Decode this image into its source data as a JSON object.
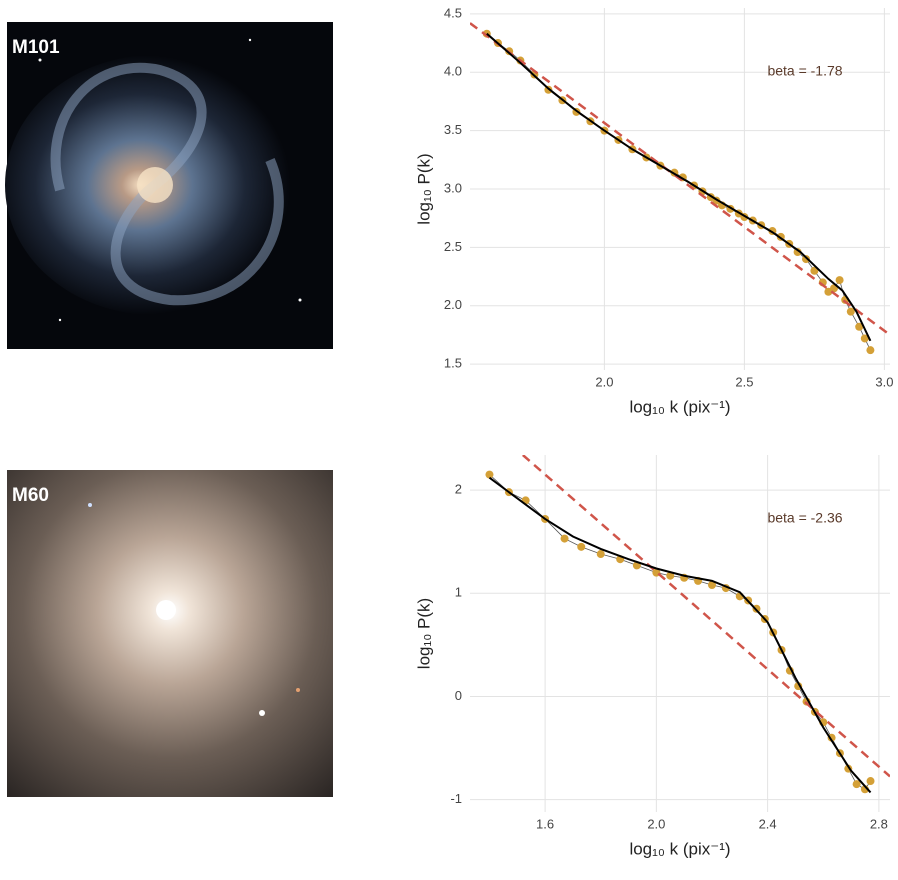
{
  "chart_data": [
    {
      "type": "scatter",
      "image_label": "M101",
      "annotation": "beta = -1.78",
      "xlabel": "log₁₀ k (pix⁻¹)",
      "ylabel": "log₁₀ P(k)",
      "xlim": [
        1.52,
        3.02
      ],
      "ylim": [
        1.45,
        4.55
      ],
      "xticks": [
        {
          "value": 2,
          "label": "2.0"
        },
        2.5,
        {
          "value": 3,
          "label": "3.0"
        }
      ],
      "yticks": [
        1.5,
        {
          "value": 2,
          "label": "2.0"
        },
        2.5,
        {
          "value": 3,
          "label": "3.0"
        },
        3.5,
        {
          "value": 4,
          "label": "4.0"
        },
        4.5
      ],
      "grid": true,
      "points": {
        "color": "#d4a037",
        "x": [
          1.58,
          1.62,
          1.66,
          1.7,
          1.75,
          1.8,
          1.85,
          1.9,
          1.95,
          2.0,
          2.05,
          2.1,
          2.15,
          2.2,
          2.25,
          2.28,
          2.32,
          2.35,
          2.38,
          2.4,
          2.42,
          2.45,
          2.48,
          2.5,
          2.53,
          2.56,
          2.6,
          2.63,
          2.66,
          2.69,
          2.72,
          2.75,
          2.78,
          2.8,
          2.82,
          2.84,
          2.86,
          2.88,
          2.91,
          2.93,
          2.95
        ],
        "values": [
          4.33,
          4.25,
          4.18,
          4.1,
          3.98,
          3.85,
          3.76,
          3.66,
          3.58,
          3.5,
          3.42,
          3.34,
          3.27,
          3.2,
          3.14,
          3.1,
          3.03,
          2.98,
          2.93,
          2.9,
          2.86,
          2.83,
          2.79,
          2.76,
          2.73,
          2.69,
          2.64,
          2.59,
          2.53,
          2.46,
          2.4,
          2.3,
          2.2,
          2.12,
          2.15,
          2.22,
          2.05,
          1.95,
          1.82,
          1.72,
          1.62
        ]
      },
      "smooth": {
        "color": "#000000",
        "x": [
          1.58,
          1.7,
          1.8,
          1.9,
          2.0,
          2.1,
          2.2,
          2.3,
          2.4,
          2.5,
          2.6,
          2.7,
          2.8,
          2.85,
          2.9,
          2.95
        ],
        "values": [
          4.33,
          4.08,
          3.86,
          3.67,
          3.5,
          3.34,
          3.2,
          3.06,
          2.91,
          2.77,
          2.63,
          2.46,
          2.23,
          2.13,
          1.95,
          1.7
        ]
      },
      "power_law": {
        "color": "#d0554a",
        "x": [
          1.52,
          3.02
        ],
        "values": [
          4.42,
          1.75
        ]
      }
    },
    {
      "type": "scatter",
      "image_label": "M60",
      "annotation": "beta = -2.36",
      "xlabel": "log₁₀ k (pix⁻¹)",
      "ylabel": "log₁₀ P(k)",
      "xlim": [
        1.33,
        2.84
      ],
      "ylim": [
        -1.12,
        2.34
      ],
      "xticks": [
        1.6,
        {
          "value": 2,
          "label": "2.0"
        },
        2.4,
        2.8
      ],
      "yticks": [
        -1,
        0,
        1,
        2
      ],
      "grid": true,
      "points": {
        "color": "#d4a037",
        "x": [
          1.4,
          1.47,
          1.53,
          1.6,
          1.67,
          1.73,
          1.8,
          1.87,
          1.93,
          2.0,
          2.05,
          2.1,
          2.15,
          2.2,
          2.25,
          2.3,
          2.33,
          2.36,
          2.39,
          2.42,
          2.45,
          2.48,
          2.51,
          2.54,
          2.57,
          2.6,
          2.63,
          2.66,
          2.69,
          2.72,
          2.75,
          2.77
        ],
        "values": [
          2.15,
          1.98,
          1.9,
          1.72,
          1.53,
          1.45,
          1.38,
          1.33,
          1.27,
          1.2,
          1.17,
          1.15,
          1.12,
          1.08,
          1.05,
          0.97,
          0.93,
          0.85,
          0.75,
          0.62,
          0.45,
          0.25,
          0.1,
          -0.05,
          -0.15,
          -0.25,
          -0.4,
          -0.55,
          -0.7,
          -0.85,
          -0.9,
          -0.82
        ]
      },
      "smooth": {
        "color": "#000000",
        "x": [
          1.4,
          1.5,
          1.6,
          1.7,
          1.8,
          1.9,
          2.0,
          2.1,
          2.2,
          2.3,
          2.4,
          2.5,
          2.6,
          2.7,
          2.77
        ],
        "values": [
          2.12,
          1.92,
          1.72,
          1.55,
          1.43,
          1.33,
          1.24,
          1.17,
          1.12,
          1.01,
          0.72,
          0.18,
          -0.3,
          -0.72,
          -0.93
        ]
      },
      "power_law": {
        "color": "#d0554a",
        "x": [
          1.52,
          2.84
        ],
        "values": [
          2.34,
          -0.775
        ]
      }
    }
  ]
}
